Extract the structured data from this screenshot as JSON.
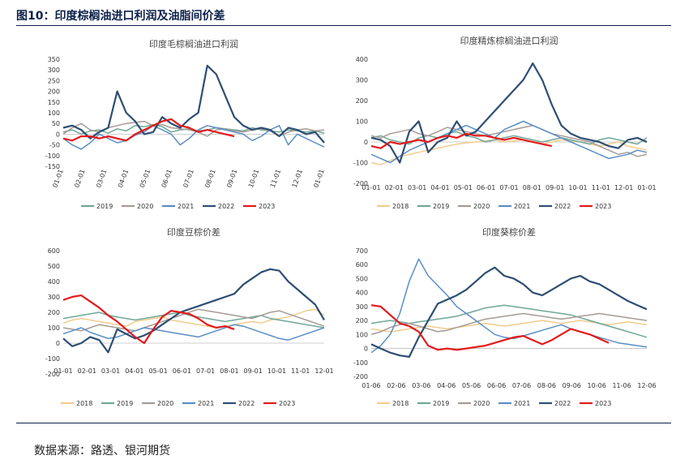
{
  "figure": {
    "title": "图10：印度棕榈油进口利润及油脂间价差",
    "source": "数据来源：路透、银河期货"
  },
  "colors": {
    "2018": "#f1cc8f",
    "2019": "#6fa898",
    "2020": "#a69a96",
    "2021": "#5b8ec4",
    "2022": "#2e4e72",
    "2023": "#e41a1c"
  },
  "chart_data": [
    {
      "type": "line",
      "title": "印度毛棕榈油进口利润",
      "ylim": [
        -150,
        350
      ],
      "yticks": [
        -150,
        -100,
        -50,
        0,
        50,
        100,
        150,
        200,
        250,
        300,
        350
      ],
      "xlabels": [
        "01-01",
        "02-01",
        "03-01",
        "04-01",
        "05-01",
        "06-01",
        "07-01",
        "08-01",
        "09-01",
        "10-01",
        "11-01",
        "12-01",
        "01-01"
      ],
      "series": [
        {
          "name": "2019",
          "values": [
            10,
            20,
            0,
            15,
            20,
            5,
            25,
            15,
            40,
            35,
            45,
            35,
            10,
            20,
            25,
            15,
            20,
            30,
            25,
            20,
            15,
            30,
            20,
            15,
            10,
            20,
            15,
            10,
            15,
            5
          ]
        },
        {
          "name": "2020",
          "values": [
            0,
            30,
            50,
            20,
            10,
            30,
            40,
            50,
            55,
            60,
            40,
            45,
            30,
            25,
            20,
            10,
            -10,
            20,
            25,
            15,
            10,
            20,
            25,
            15,
            -10,
            10,
            20,
            25,
            15,
            20
          ]
        },
        {
          "name": "2021",
          "values": [
            -20,
            -50,
            -70,
            -40,
            0,
            -20,
            -40,
            -30,
            -5,
            10,
            40,
            20,
            0,
            -50,
            -20,
            20,
            40,
            30,
            20,
            10,
            0,
            -30,
            -10,
            20,
            40,
            -50,
            0,
            -20,
            -40,
            -60
          ]
        },
        {
          "name": "2022",
          "values": [
            30,
            40,
            20,
            -20,
            10,
            30,
            200,
            100,
            60,
            0,
            10,
            80,
            50,
            30,
            70,
            100,
            320,
            280,
            180,
            80,
            40,
            20,
            30,
            20,
            -10,
            30,
            20,
            0,
            10,
            -40
          ]
        },
        {
          "name": "2023",
          "values": [
            -20,
            -30,
            -10,
            -10,
            -20,
            -10,
            -20,
            -30,
            0,
            20,
            40,
            60,
            70,
            40,
            30,
            10,
            20,
            10,
            0,
            -10
          ]
        }
      ]
    },
    {
      "type": "line",
      "title": "印度精炼棕榈油进口利润",
      "ylim": [
        -200,
        400
      ],
      "yticks": [
        -200,
        -100,
        0,
        100,
        200,
        300,
        400
      ],
      "xlabels": [
        "01-01",
        "02-01",
        "03-01",
        "04-01",
        "05-01",
        "06-01",
        "07-01",
        "08-01",
        "09-01",
        "10-01",
        "11-01",
        "12-01",
        "01-01"
      ],
      "series": [
        {
          "name": "2018",
          "values": [
            -100,
            -110,
            -90,
            -70,
            -60,
            -50,
            -40,
            -30,
            -20,
            -10,
            -5,
            0,
            5,
            10,
            0,
            5,
            10,
            0,
            -10,
            0,
            10,
            5,
            0,
            -10,
            -20,
            -10,
            0,
            -20,
            -30,
            -40
          ]
        },
        {
          "name": "2019",
          "values": [
            20,
            30,
            10,
            0,
            -10,
            20,
            30,
            20,
            40,
            50,
            30,
            20,
            0,
            10,
            20,
            30,
            20,
            10,
            0,
            10,
            20,
            10,
            0,
            -10,
            10,
            20,
            10,
            0,
            -10,
            20
          ]
        },
        {
          "name": "2020",
          "values": [
            30,
            20,
            40,
            50,
            60,
            40,
            30,
            50,
            70,
            60,
            50,
            40,
            30,
            40,
            50,
            60,
            70,
            80,
            60,
            40,
            30,
            20,
            10,
            0,
            -20,
            -40,
            -60,
            -50,
            -70,
            -60
          ]
        },
        {
          "name": "2021",
          "values": [
            -60,
            -80,
            -100,
            -70,
            -40,
            -20,
            0,
            20,
            40,
            60,
            80,
            60,
            40,
            20,
            60,
            80,
            100,
            80,
            60,
            40,
            20,
            0,
            -20,
            -40,
            -60,
            -80,
            -70,
            -60,
            -40,
            -50
          ]
        },
        {
          "name": "2022",
          "values": [
            20,
            10,
            -20,
            -100,
            50,
            100,
            -50,
            0,
            20,
            100,
            30,
            50,
            100,
            150,
            200,
            250,
            300,
            380,
            300,
            180,
            80,
            40,
            20,
            10,
            0,
            -20,
            -30,
            10,
            20,
            0
          ]
        },
        {
          "name": "2023",
          "values": [
            -20,
            -30,
            0,
            -10,
            0,
            10,
            0,
            20,
            30,
            20,
            40,
            30,
            30,
            20,
            10,
            20,
            10,
            0,
            -10,
            -20
          ]
        }
      ]
    },
    {
      "type": "line",
      "title": "印度豆棕价差",
      "ylim": [
        -200,
        600
      ],
      "yticks": [
        -200,
        -100,
        0,
        100,
        200,
        300,
        400,
        500,
        600
      ],
      "xlabels": [
        "01-01",
        "02-01",
        "03-01",
        "04-01",
        "05-01",
        "06-01",
        "07-01",
        "08-01",
        "09-01",
        "10-01",
        "11-01",
        "12-01"
      ],
      "series": [
        {
          "name": "2018",
          "values": [
            130,
            150,
            160,
            150,
            140,
            130,
            120,
            110,
            140,
            150,
            160,
            170,
            150,
            140,
            130,
            120,
            110,
            100,
            110,
            120,
            130,
            140,
            130,
            150,
            160,
            170,
            190,
            210,
            220,
            180
          ]
        },
        {
          "name": "2019",
          "values": [
            160,
            170,
            180,
            190,
            200,
            180,
            170,
            160,
            150,
            160,
            170,
            180,
            190,
            200,
            180,
            170,
            160,
            150,
            140,
            150,
            160,
            170,
            180,
            160,
            150,
            140,
            130,
            120,
            110,
            100
          ]
        },
        {
          "name": "2020",
          "values": [
            100,
            90,
            80,
            100,
            120,
            110,
            100,
            90,
            80,
            100,
            120,
            140,
            160,
            180,
            200,
            220,
            210,
            200,
            190,
            180,
            170,
            160,
            180,
            200,
            210,
            190,
            170,
            150,
            130,
            110
          ]
        },
        {
          "name": "2021",
          "values": [
            60,
            80,
            100,
            70,
            50,
            30,
            40,
            60,
            80,
            100,
            90,
            80,
            70,
            60,
            50,
            40,
            60,
            80,
            100,
            120,
            110,
            90,
            70,
            50,
            30,
            20,
            40,
            60,
            80,
            100
          ]
        },
        {
          "name": "2022",
          "values": [
            30,
            -20,
            0,
            40,
            20,
            -60,
            90,
            60,
            30,
            50,
            80,
            120,
            160,
            200,
            220,
            240,
            260,
            280,
            300,
            320,
            380,
            420,
            460,
            480,
            470,
            400,
            350,
            300,
            250,
            150
          ]
        },
        {
          "name": "2023",
          "values": [
            280,
            300,
            310,
            270,
            230,
            180,
            140,
            90,
            40,
            0,
            90,
            170,
            210,
            200,
            190,
            160,
            120,
            100,
            110,
            90
          ]
        }
      ]
    },
    {
      "type": "line",
      "title": "印度葵棕价差",
      "ylim": [
        -200,
        700
      ],
      "yticks": [
        -200,
        -100,
        0,
        100,
        200,
        300,
        400,
        500,
        600,
        700
      ],
      "xlabels": [
        "01-06",
        "02-06",
        "03-06",
        "04-06",
        "05-06",
        "06-06",
        "07-06",
        "08-06",
        "09-06",
        "10-06",
        "11-06",
        "12-06"
      ],
      "series": [
        {
          "name": "2018",
          "values": [
            140,
            130,
            120,
            130,
            140,
            150,
            160,
            150,
            140,
            150,
            160,
            170,
            180,
            170,
            160,
            170,
            180,
            190,
            200,
            190,
            180,
            190,
            200,
            190,
            180,
            170,
            180,
            190,
            180,
            170
          ]
        },
        {
          "name": "2019",
          "values": [
            180,
            190,
            200,
            190,
            180,
            190,
            200,
            210,
            220,
            230,
            250,
            270,
            290,
            300,
            310,
            300,
            290,
            280,
            270,
            260,
            250,
            240,
            220,
            200,
            180,
            160,
            140,
            120,
            100,
            80
          ]
        },
        {
          "name": "2020",
          "values": [
            100,
            120,
            150,
            170,
            180,
            160,
            140,
            120,
            130,
            150,
            170,
            190,
            210,
            220,
            230,
            240,
            250,
            240,
            230,
            220,
            210,
            220,
            230,
            240,
            250,
            240,
            230,
            220,
            210,
            200
          ]
        },
        {
          "name": "2021",
          "values": [
            -30,
            20,
            100,
            250,
            480,
            640,
            520,
            450,
            380,
            300,
            250,
            200,
            150,
            100,
            80,
            70,
            90,
            110,
            130,
            150,
            170,
            140,
            120,
            100,
            80,
            60,
            40,
            30,
            20,
            10
          ]
        },
        {
          "name": "2022",
          "values": [
            30,
            0,
            -30,
            -50,
            -60,
            80,
            200,
            320,
            350,
            380,
            420,
            480,
            540,
            580,
            520,
            500,
            460,
            400,
            380,
            420,
            460,
            500,
            520,
            480,
            460,
            420,
            380,
            340,
            310,
            280
          ]
        },
        {
          "name": "2023",
          "values": [
            310,
            300,
            240,
            180,
            160,
            120,
            20,
            -10,
            0,
            -10,
            0,
            10,
            20,
            40,
            60,
            80,
            90,
            60,
            30,
            60,
            100,
            140,
            120,
            100,
            70,
            40
          ]
        }
      ]
    }
  ]
}
